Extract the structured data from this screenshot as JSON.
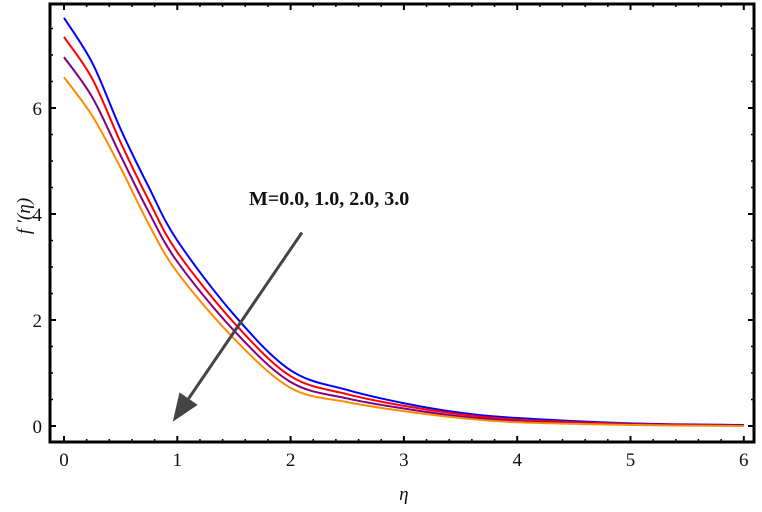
{
  "chart_data": {
    "type": "line",
    "title": "",
    "xlabel": "η",
    "ylabel": "f ′(η)",
    "xlim": [
      -0.12,
      6.1
    ],
    "ylim": [
      -0.3,
      7.95
    ],
    "xticks": [
      0,
      1,
      2,
      3,
      4,
      5,
      6
    ],
    "yticks": [
      0,
      2,
      4,
      6
    ],
    "grid": false,
    "legend": null,
    "x": [
      0,
      0.25,
      0.5,
      0.75,
      1.0,
      1.5,
      2.0,
      2.5,
      3.0,
      3.5,
      4.0,
      5.0,
      6.0
    ],
    "series": [
      {
        "name": "M=0.0",
        "color": "#0000ff",
        "values": [
          7.7,
          6.85,
          5.6,
          4.5,
          3.5,
          2.1,
          1.05,
          0.68,
          0.43,
          0.25,
          0.15,
          0.05,
          0.02
        ]
      },
      {
        "name": "M=1.0",
        "color": "#ff0000",
        "values": [
          7.34,
          6.55,
          5.35,
          4.25,
          3.28,
          1.95,
          0.94,
          0.6,
          0.38,
          0.22,
          0.12,
          0.04,
          0.01
        ]
      },
      {
        "name": "M=2.0",
        "color": "#800080",
        "values": [
          6.96,
          6.2,
          5.1,
          4.03,
          3.1,
          1.8,
          0.83,
          0.52,
          0.33,
          0.18,
          0.09,
          0.03,
          0.01
        ]
      },
      {
        "name": "M=3.0",
        "color": "#ff8c00",
        "values": [
          6.58,
          5.85,
          4.87,
          3.8,
          2.9,
          1.65,
          0.72,
          0.45,
          0.28,
          0.15,
          0.07,
          0.02,
          0.0
        ]
      }
    ],
    "annotations": [
      {
        "text": "M=0.0, 1.0, 2.0, 3.0",
        "x": 1.64,
        "y": 4.15,
        "arrow_from": [
          2.1,
          3.65
        ],
        "arrow_to": [
          0.96,
          0.08
        ],
        "arrow_color": "#444444"
      }
    ]
  }
}
